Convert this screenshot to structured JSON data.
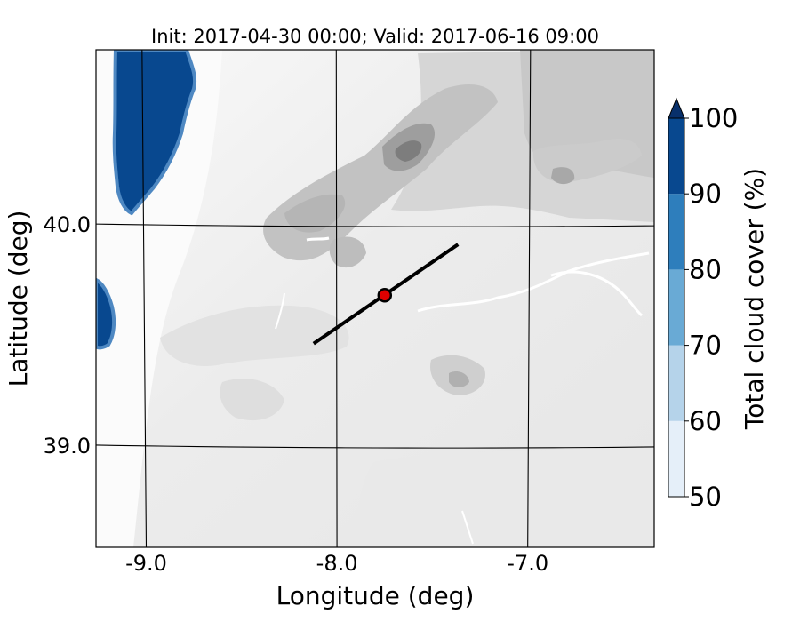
{
  "title": "Init: 2017-04-30 00:00; Valid: 2017-06-16 09:00",
  "map": {
    "xlabel": "Longitude (deg)",
    "ylabel": "Latitude (deg)",
    "lon_range": [
      -9.25,
      -6.35
    ],
    "lat_range": [
      38.55,
      40.8
    ],
    "lon_ticks": [
      {
        "value": -9.0,
        "label": "-9.0"
      },
      {
        "value": -8.0,
        "label": "-8.0"
      },
      {
        "value": -7.0,
        "label": "-7.0"
      }
    ],
    "lat_ticks": [
      {
        "value": 40.0,
        "label": "40.0"
      },
      {
        "value": 39.0,
        "label": "39.0"
      }
    ],
    "gridlines": true,
    "cross_section_line": {
      "start": {
        "lon": -8.12,
        "lat": 39.47
      },
      "end": {
        "lon": -7.37,
        "lat": 39.92
      },
      "color": "#000000"
    },
    "marker": {
      "lon": -7.75,
      "lat": 39.69,
      "color": "#e00000"
    }
  },
  "colorbar": {
    "label": "Total cloud cover (%)",
    "ticks": [
      "50",
      "60",
      "70",
      "80",
      "90",
      "100"
    ],
    "levels": [
      50,
      60,
      70,
      80,
      90,
      100
    ],
    "colors": [
      "#e5eff9",
      "#b5d3ea",
      "#69aad5",
      "#2e7ebc",
      "#08488f"
    ],
    "extend_color": "#08306b"
  },
  "colors": {
    "terrain_base": "#f5f5f5",
    "terrain_dark": "#7d7d7d",
    "cloud": "#08488f",
    "cloud_edge": "#4e88c2"
  }
}
